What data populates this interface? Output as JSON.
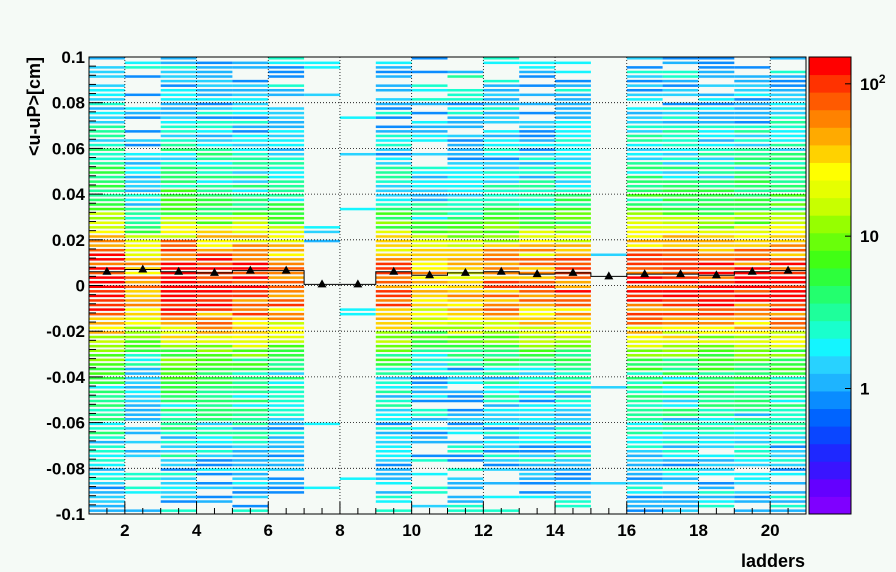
{
  "chart_data": {
    "type": "heatmap",
    "title": "",
    "xlabel": "ladders",
    "ylabel": "<u-uP>[cm]",
    "xlim": [
      1,
      21
    ],
    "ylim": [
      -0.1,
      0.1
    ],
    "x_ticks": [
      2,
      4,
      6,
      8,
      10,
      12,
      14,
      16,
      18,
      20
    ],
    "y_ticks": [
      -0.1,
      -0.08,
      -0.06,
      -0.04,
      -0.02,
      0,
      0.02,
      0.04,
      0.06,
      0.08,
      0.1
    ],
    "y_tick_labels": [
      "-0.1",
      "-0.08",
      "-0.06",
      "-0.04",
      "-0.02",
      "0",
      "0.02",
      "0.04",
      "0.06",
      "0.08",
      "0.1"
    ],
    "grid": true,
    "color_scale": "log",
    "z_range": [
      0.15,
      150
    ],
    "palette_labels": [
      {
        "value": 1,
        "text": "1"
      },
      {
        "value": 10,
        "text": "10"
      },
      {
        "value": 100,
        "base": "10",
        "exp": "2"
      }
    ],
    "palette_colors": [
      "#7f00ff",
      "#6400ff",
      "#3a14ff",
      "#1e28ff",
      "#0a46ff",
      "#0064ff",
      "#0a8cff",
      "#1eb4ff",
      "#28d2ff",
      "#14f5ff",
      "#19ffcd",
      "#1eff9b",
      "#23ff6e",
      "#2dff3c",
      "#41ff14",
      "#69ff0a",
      "#96ff00",
      "#c8ff00",
      "#e6ff00",
      "#ffff00",
      "#ffd200",
      "#ffaa00",
      "#ff8200",
      "#ff5a00",
      "#ff3200",
      "#ff0000"
    ],
    "empty_ladders": [
      7,
      8,
      15
    ],
    "ladders": [
      1,
      2,
      3,
      4,
      5,
      6,
      7,
      8,
      9,
      10,
      11,
      12,
      13,
      14,
      15,
      16,
      17,
      18,
      19,
      20
    ],
    "ladder_intensity": [
      1.0,
      0.35,
      1.0,
      0.9,
      0.8,
      0.55,
      0.05,
      0.05,
      0.6,
      0.3,
      0.35,
      0.5,
      0.55,
      0.6,
      0.03,
      0.85,
      0.8,
      0.75,
      0.8,
      0.9
    ],
    "profile": {
      "x": [
        1.5,
        2.5,
        3.5,
        4.5,
        5.5,
        6.5,
        7.5,
        8.5,
        9.5,
        10.5,
        11.5,
        12.5,
        13.5,
        14.5,
        15.5,
        16.5,
        17.5,
        18.5,
        19.5,
        20.5
      ],
      "y": [
        0.006,
        0.007,
        0.006,
        0.0055,
        0.0065,
        0.0065,
        0.0005,
        0.0005,
        0.006,
        0.0045,
        0.0055,
        0.006,
        0.005,
        0.0055,
        0.004,
        0.005,
        0.005,
        0.0045,
        0.006,
        0.0065
      ]
    }
  }
}
